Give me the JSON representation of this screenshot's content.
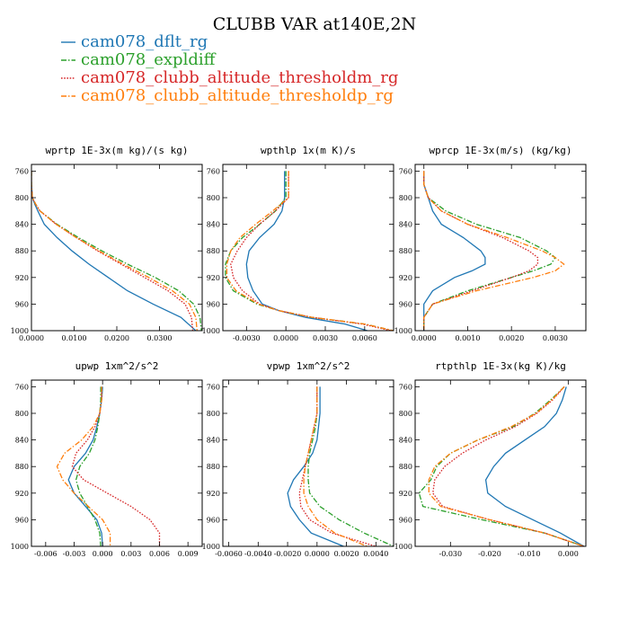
{
  "figure": {
    "title": "CLUBB VAR at140E,2N"
  },
  "legend": [
    {
      "name": "cam078_dflt_rg",
      "color": "#1f77b4",
      "dash": "solid"
    },
    {
      "name": "cam078_expldiff",
      "color": "#2ca02c",
      "dash": "dashdot"
    },
    {
      "name": "cam078_clubb_altitude_thresholdm_rg",
      "color": "#d62728",
      "dash": "dotted"
    },
    {
      "name": "cam078_clubb_altitude_thresholdp_rg",
      "color": "#ff7f0e",
      "dash": "dashdot"
    }
  ],
  "chart_data": [
    {
      "type": "line",
      "title": "wprtp  1E-3x(m kg)/(s kg)",
      "xlim": [
        0,
        0.04
      ],
      "xticks": [
        0,
        0.01,
        0.02,
        0.03
      ],
      "xtick_labels": [
        "0.0000",
        "0.0100",
        "0.0200",
        "0.0300"
      ],
      "ylim": [
        1000,
        750
      ],
      "yticks": [
        760,
        800,
        840,
        880,
        920,
        960,
        1000
      ],
      "y": [
        760,
        780,
        800,
        810,
        820,
        840,
        860,
        880,
        900,
        920,
        940,
        960,
        980,
        1000
      ],
      "series": [
        {
          "values": [
            0.0,
            0.0,
            0.0002,
            0.0008,
            0.0015,
            0.003,
            0.006,
            0.0095,
            0.0135,
            0.018,
            0.0225,
            0.0285,
            0.035,
            0.0385
          ]
        },
        {
          "values": [
            0.0,
            0.0,
            0.0002,
            0.001,
            0.002,
            0.006,
            0.011,
            0.0165,
            0.0225,
            0.029,
            0.0345,
            0.038,
            0.0395,
            0.0398
          ]
        },
        {
          "values": [
            0.0,
            0.0,
            0.0002,
            0.001,
            0.002,
            0.0058,
            0.0105,
            0.0155,
            0.021,
            0.0265,
            0.032,
            0.036,
            0.0375,
            0.0378
          ]
        },
        {
          "values": [
            0.0,
            0.0,
            0.0002,
            0.001,
            0.002,
            0.0058,
            0.0105,
            0.0158,
            0.0215,
            0.0275,
            0.033,
            0.037,
            0.0385,
            0.0388
          ]
        }
      ]
    },
    {
      "type": "line",
      "title": "wpthlp  1x(m K)/s",
      "xlim": [
        -0.0048,
        0.0082
      ],
      "xticks": [
        -0.003,
        0,
        0.003,
        0.006
      ],
      "xtick_labels": [
        "-0.0030",
        "0.0000",
        "0.0030",
        "0.0060"
      ],
      "ylim": [
        1000,
        750
      ],
      "yticks": [
        760,
        800,
        840,
        880,
        920,
        960,
        1000
      ],
      "y": [
        760,
        780,
        800,
        820,
        840,
        860,
        880,
        900,
        920,
        940,
        960,
        970,
        980,
        990,
        1000
      ],
      "series": [
        {
          "values": [
            -0.0001,
            -0.0001,
            -0.0001,
            -0.0003,
            -0.0009,
            -0.002,
            -0.0028,
            -0.003,
            -0.0029,
            -0.0025,
            -0.0018,
            -0.0005,
            0.0015,
            0.0045,
            0.0062
          ]
        },
        {
          "values": [
            0.0,
            0.0,
            0.0,
            -0.0008,
            -0.002,
            -0.0033,
            -0.0042,
            -0.0046,
            -0.0046,
            -0.004,
            -0.0022,
            -0.0005,
            0.002,
            0.006,
            0.0082
          ]
        },
        {
          "values": [
            0.0002,
            0.0002,
            0.0002,
            -0.0008,
            -0.002,
            -0.003,
            -0.0037,
            -0.0042,
            -0.004,
            -0.0033,
            -0.002,
            -0.0005,
            0.002,
            0.0058,
            0.008
          ]
        },
        {
          "values": [
            0.0002,
            0.0002,
            0.0002,
            -0.001,
            -0.0023,
            -0.0035,
            -0.0042,
            -0.0045,
            -0.0045,
            -0.0038,
            -0.0021,
            -0.0005,
            0.002,
            0.006,
            0.0082
          ]
        }
      ]
    },
    {
      "type": "line",
      "title": "wprcp  1E-3x(m/s) (kg/kg)",
      "xlim": [
        -0.0002,
        0.0037
      ],
      "xticks": [
        0,
        0.001,
        0.002,
        0.003
      ],
      "xtick_labels": [
        "0.0000",
        "0.0010",
        "0.0020",
        "0.0030"
      ],
      "ylim": [
        1000,
        750
      ],
      "yticks": [
        760,
        800,
        840,
        880,
        920,
        960,
        1000
      ],
      "y": [
        760,
        780,
        800,
        820,
        840,
        860,
        880,
        890,
        900,
        910,
        920,
        940,
        960,
        980,
        1000
      ],
      "series": [
        {
          "values": [
            0.0,
            0.0,
            0.0001,
            0.0002,
            0.0004,
            0.0009,
            0.0013,
            0.0014,
            0.0014,
            0.0011,
            0.0007,
            0.0002,
            0.0,
            0.0,
            0.0
          ]
        },
        {
          "values": [
            0.0,
            0.0,
            0.0001,
            0.0005,
            0.0012,
            0.0022,
            0.0028,
            0.003,
            0.0029,
            0.0025,
            0.002,
            0.001,
            0.0002,
            0.0,
            0.0
          ]
        },
        {
          "values": [
            0.0,
            0.0,
            0.0001,
            0.0004,
            0.001,
            0.0018,
            0.0024,
            0.0026,
            0.0026,
            0.0024,
            0.002,
            0.0011,
            0.0002,
            0.0,
            0.0
          ]
        },
        {
          "values": [
            0.0,
            0.0,
            0.0001,
            0.0004,
            0.001,
            0.0019,
            0.0027,
            0.003,
            0.0032,
            0.003,
            0.0025,
            0.0012,
            0.0002,
            0.0,
            0.0
          ]
        }
      ]
    },
    {
      "type": "line",
      "title": "upwp  1xm^2/s^2",
      "xlim": [
        -0.0075,
        0.0105
      ],
      "xticks": [
        -0.006,
        -0.003,
        0,
        0.003,
        0.006,
        0.009
      ],
      "xtick_labels": [
        "-0.006",
        "-0.003",
        "0.000",
        "0.003",
        "0.006",
        "0.009"
      ],
      "ylim": [
        1000,
        750
      ],
      "yticks": [
        760,
        800,
        840,
        880,
        920,
        960,
        1000
      ],
      "y": [
        760,
        780,
        800,
        820,
        840,
        860,
        880,
        900,
        920,
        940,
        960,
        980,
        1000
      ],
      "series": [
        {
          "values": [
            0.0,
            -0.0001,
            -0.0003,
            -0.0006,
            -0.001,
            -0.0018,
            -0.003,
            -0.0036,
            -0.003,
            -0.0018,
            -0.0006,
            -0.0001,
            0.0
          ]
        },
        {
          "values": [
            -0.0002,
            -0.0002,
            -0.0003,
            -0.0005,
            -0.0008,
            -0.0014,
            -0.0024,
            -0.0028,
            -0.0024,
            -0.0016,
            -0.0008,
            -0.0003,
            -0.0002
          ]
        },
        {
          "values": [
            -0.0001,
            -0.0001,
            -0.0003,
            -0.0008,
            -0.0016,
            -0.0028,
            -0.0032,
            -0.002,
            0.0005,
            0.003,
            0.005,
            0.006,
            0.006
          ]
        },
        {
          "values": [
            -0.0001,
            -0.0001,
            -0.0003,
            -0.001,
            -0.0022,
            -0.004,
            -0.0048,
            -0.0042,
            -0.003,
            -0.0015,
            0.0,
            0.0008,
            0.0008
          ]
        }
      ]
    },
    {
      "type": "line",
      "title": "vpwp  1xm^2/s^2",
      "xlim": [
        -0.0064,
        0.0052
      ],
      "xticks": [
        -0.006,
        -0.004,
        -0.002,
        0,
        0.002,
        0.004
      ],
      "xtick_labels": [
        "-0.0060",
        "-0.0040",
        "-0.0020",
        "0.0000",
        "0.0020",
        "0.0040"
      ],
      "ylim": [
        1000,
        750
      ],
      "yticks": [
        760,
        800,
        840,
        880,
        920,
        960,
        1000
      ],
      "y": [
        760,
        780,
        800,
        820,
        840,
        860,
        880,
        900,
        920,
        940,
        960,
        980,
        1000
      ],
      "series": [
        {
          "values": [
            0.0002,
            0.0002,
            0.0002,
            0.0001,
            0.0,
            -0.0003,
            -0.0009,
            -0.0016,
            -0.002,
            -0.0018,
            -0.0012,
            -0.0004,
            0.0018
          ]
        },
        {
          "values": [
            0.0,
            0.0,
            0.0,
            -0.0001,
            -0.0003,
            -0.0005,
            -0.0006,
            -0.0006,
            -0.0005,
            0.0002,
            0.0015,
            0.0032,
            0.0052
          ]
        },
        {
          "values": [
            0.0,
            0.0,
            0.0,
            -0.0002,
            -0.0004,
            -0.0006,
            -0.0008,
            -0.001,
            -0.0012,
            -0.0011,
            -0.0005,
            0.001,
            0.004
          ]
        },
        {
          "values": [
            0.0,
            0.0,
            0.0,
            -0.0002,
            -0.0004,
            -0.0006,
            -0.0008,
            -0.0009,
            -0.0009,
            -0.0006,
            0.0,
            0.0012,
            0.0034
          ]
        }
      ]
    },
    {
      "type": "line",
      "title": "rtpthlp  1E-3x(kg K)/kg",
      "xlim": [
        -0.039,
        0.0045
      ],
      "xticks": [
        -0.03,
        -0.02,
        -0.01,
        0
      ],
      "xtick_labels": [
        "-0.030",
        "-0.020",
        "-0.010",
        "0.000"
      ],
      "ylim": [
        1000,
        750
      ],
      "yticks": [
        760,
        800,
        840,
        880,
        920,
        960,
        1000
      ],
      "y": [
        760,
        780,
        800,
        820,
        840,
        860,
        880,
        900,
        920,
        940,
        960,
        980,
        1000
      ],
      "series": [
        {
          "values": [
            -0.0005,
            -0.0015,
            -0.003,
            -0.006,
            -0.011,
            -0.016,
            -0.019,
            -0.021,
            -0.0205,
            -0.016,
            -0.009,
            -0.002,
            0.004
          ]
        },
        {
          "values": [
            -0.001,
            -0.0045,
            -0.0085,
            -0.014,
            -0.023,
            -0.03,
            -0.0335,
            -0.035,
            -0.038,
            -0.037,
            -0.022,
            -0.006,
            0.004
          ]
        },
        {
          "values": [
            -0.001,
            -0.004,
            -0.008,
            -0.0135,
            -0.021,
            -0.027,
            -0.0315,
            -0.034,
            -0.0345,
            -0.032,
            -0.02,
            -0.006,
            0.004
          ]
        },
        {
          "values": [
            -0.001,
            -0.0042,
            -0.0082,
            -0.0145,
            -0.023,
            -0.03,
            -0.034,
            -0.0355,
            -0.0355,
            -0.0325,
            -0.02,
            -0.006,
            0.004
          ]
        }
      ]
    }
  ]
}
